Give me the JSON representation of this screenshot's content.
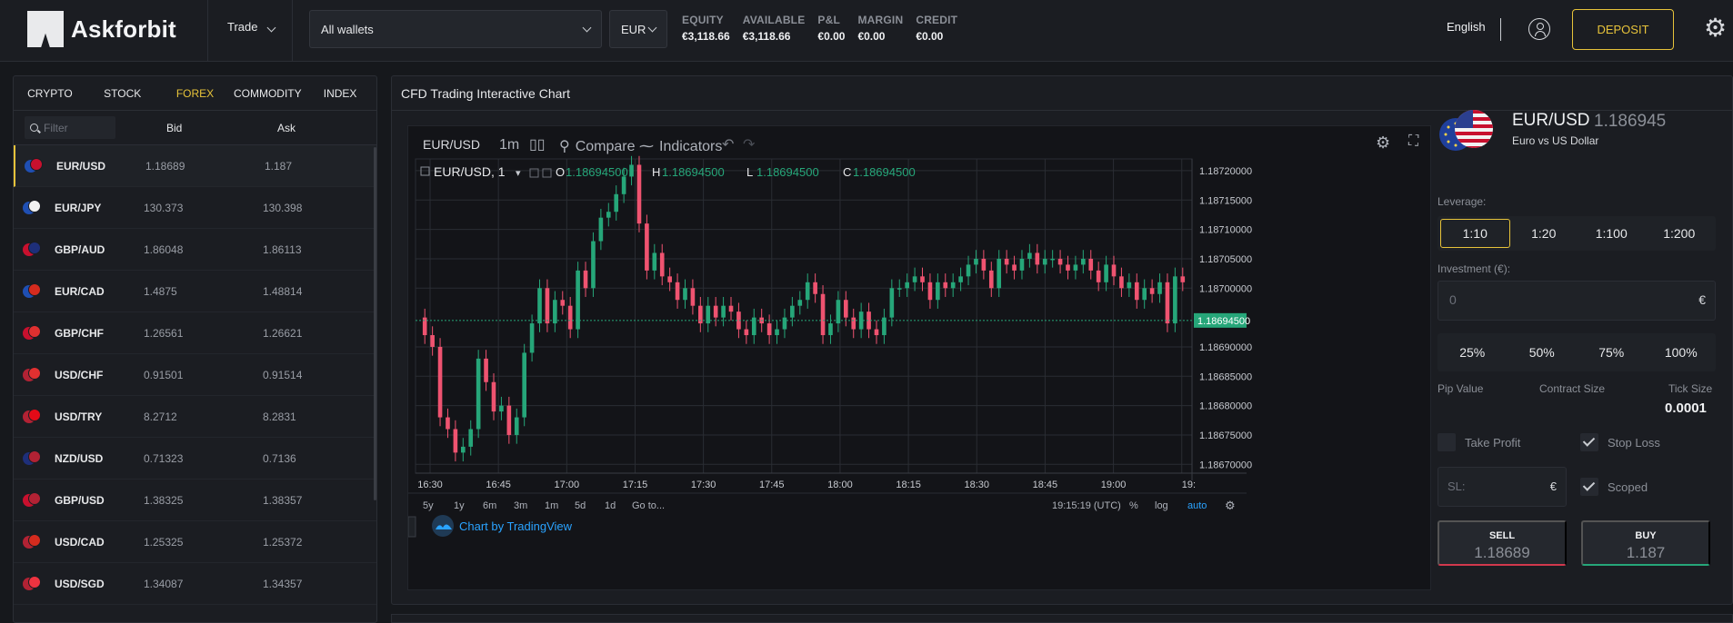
{
  "header": {
    "brand": "Askforbit",
    "trade_menu": "Trade",
    "wallet_select": "All wallets",
    "currency_select": "EUR",
    "stats": [
      {
        "label": "EQUITY",
        "value": "€3,118.66"
      },
      {
        "label": "AVAILABLE",
        "value": "€3,118.66"
      },
      {
        "label": "P&L",
        "value": "€0.00"
      },
      {
        "label": "MARGIN",
        "value": "€0.00"
      },
      {
        "label": "CREDIT",
        "value": "€0.00"
      }
    ],
    "language": "English",
    "deposit_label": "DEPOSIT"
  },
  "markets": {
    "tabs": [
      "CRYPTO",
      "STOCK",
      "FOREX",
      "COMMODITY",
      "INDEX"
    ],
    "active_tab": "FOREX",
    "filter_placeholder": "Filter",
    "col_bid": "Bid",
    "col_ask": "Ask",
    "rows": [
      {
        "symbol": "EUR/USD",
        "bid": "1.18689",
        "ask": "1.187",
        "c1": "#1f4fb3",
        "c2": "#c8102e",
        "selected": true
      },
      {
        "symbol": "EUR/JPY",
        "bid": "130.373",
        "ask": "130.398",
        "c1": "#1f4fb3",
        "c2": "#f2f2f2",
        "selected": false
      },
      {
        "symbol": "GBP/AUD",
        "bid": "1.86048",
        "ask": "1.86113",
        "c1": "#c8102e",
        "c2": "#1e2f7a",
        "selected": false
      },
      {
        "symbol": "EUR/CAD",
        "bid": "1.4875",
        "ask": "1.48814",
        "c1": "#1f4fb3",
        "c2": "#d52b1e",
        "selected": false
      },
      {
        "symbol": "GBP/CHF",
        "bid": "1.26561",
        "ask": "1.26621",
        "c1": "#c8102e",
        "c2": "#e03030",
        "selected": false
      },
      {
        "symbol": "USD/CHF",
        "bid": "0.91501",
        "ask": "0.91514",
        "c1": "#b22234",
        "c2": "#e03030",
        "selected": false
      },
      {
        "symbol": "USD/TRY",
        "bid": "8.2712",
        "ask": "8.2831",
        "c1": "#b22234",
        "c2": "#e30a17",
        "selected": false
      },
      {
        "symbol": "NZD/USD",
        "bid": "0.71323",
        "ask": "0.7136",
        "c1": "#1e2f7a",
        "c2": "#b22234",
        "selected": false
      },
      {
        "symbol": "GBP/USD",
        "bid": "1.38325",
        "ask": "1.38357",
        "c1": "#c8102e",
        "c2": "#b22234",
        "selected": false
      },
      {
        "symbol": "USD/CAD",
        "bid": "1.25325",
        "ask": "1.25372",
        "c1": "#b22234",
        "c2": "#d52b1e",
        "selected": false
      },
      {
        "symbol": "USD/SGD",
        "bid": "1.34087",
        "ask": "1.34357",
        "c1": "#b22234",
        "c2": "#ef3340",
        "selected": false
      }
    ]
  },
  "chart_panel": {
    "title": "CFD Trading Interactive Chart",
    "toolbar": {
      "symbol": "EUR/USD",
      "interval": "1m",
      "compare": "Compare",
      "indicators": "Indicators"
    },
    "legend": {
      "symbol": "EUR/USD, 1",
      "o_label": "O",
      "o": "1.18694500",
      "h_label": "H",
      "h": "1.18694500",
      "l_label": "L",
      "l": "1.18694500",
      "c_label": "C",
      "c": "1.18694500"
    },
    "watermark": "Chart by TradingView",
    "range_buttons": [
      "5y",
      "1y",
      "6m",
      "3m",
      "1m",
      "5d",
      "1d",
      "Go to..."
    ],
    "clock": "19:15:19 (UTC)",
    "options": [
      "%",
      "log",
      "auto"
    ],
    "colors": {
      "up": "#26a679",
      "down": "#ef5370",
      "grid": "#2a2d33",
      "accent": "#e7c33a"
    }
  },
  "chart_data": {
    "type": "candlestick",
    "y_ticks": [
      "1.18720000",
      "1.18715000",
      "1.18710000",
      "1.18705000",
      "1.18700000",
      "1.18694500",
      "1.18690000",
      "1.18685000",
      "1.18680000",
      "1.18675000",
      "1.18670000"
    ],
    "ylim": [
      1.186685,
      1.18722
    ],
    "x_ticks": [
      "16:30",
      "16:45",
      "17:00",
      "17:15",
      "17:30",
      "17:45",
      "18:00",
      "18:15",
      "18:30",
      "18:45",
      "19:00",
      "19:"
    ],
    "last_price": "1.18694500",
    "closes": [
      1.18692,
      1.1869,
      1.18678,
      1.18676,
      1.18672,
      1.18673,
      1.18676,
      1.18688,
      1.18684,
      1.18679,
      1.1868,
      1.18675,
      1.18678,
      1.18689,
      1.18694,
      1.187,
      1.18694,
      1.18698,
      1.18697,
      1.18693,
      1.18703,
      1.187,
      1.18708,
      1.18712,
      1.18713,
      1.18716,
      1.18719,
      1.18721,
      1.18711,
      1.18703,
      1.18706,
      1.18702,
      1.18701,
      1.18698,
      1.187,
      1.18697,
      1.18694,
      1.18697,
      1.18695,
      1.18697,
      1.18696,
      1.18693,
      1.18692,
      1.18695,
      1.18694,
      1.18692,
      1.18693,
      1.18695,
      1.18697,
      1.18698,
      1.18701,
      1.18699,
      1.18692,
      1.18694,
      1.18698,
      1.18695,
      1.18693,
      1.18696,
      1.18693,
      1.18692,
      1.18695,
      1.187,
      1.187,
      1.18701,
      1.18702,
      1.18701,
      1.18698,
      1.18701,
      1.187,
      1.18701,
      1.18702,
      1.18704,
      1.18705,
      1.18703,
      1.187,
      1.18705,
      1.18704,
      1.18703,
      1.18705,
      1.18706,
      1.18704,
      1.18705,
      1.18705,
      1.18704,
      1.18703,
      1.18704,
      1.18705,
      1.18703,
      1.18701,
      1.18704,
      1.18702,
      1.187,
      1.18701,
      1.18698,
      1.187,
      1.18699,
      1.18701,
      1.18694,
      1.18702,
      1.18701
    ]
  },
  "trade_panel": {
    "pair": "EUR/USD",
    "price": "1.186945",
    "description": "Euro vs US Dollar",
    "leverage_label": "Leverage:",
    "leverage_options": [
      "1:10",
      "1:20",
      "1:100",
      "1:200"
    ],
    "leverage_active": "1:10",
    "investment_label": "Investment (€):",
    "investment_placeholder": "0",
    "currency_symbol": "€",
    "percents": [
      "25%",
      "50%",
      "75%",
      "100%"
    ],
    "pip_value_label": "Pip Value",
    "contract_size_label": "Contract Size",
    "tick_size_label": "Tick Size",
    "tick_size_value": "0.0001",
    "take_profit_label": "Take Profit",
    "stop_loss_label": "Stop Loss",
    "scoped_label": "Scoped",
    "sl_placeholder": "SL:",
    "sell_label": "SELL",
    "sell_price": "1.18689",
    "buy_label": "BUY",
    "buy_price": "1.187"
  }
}
